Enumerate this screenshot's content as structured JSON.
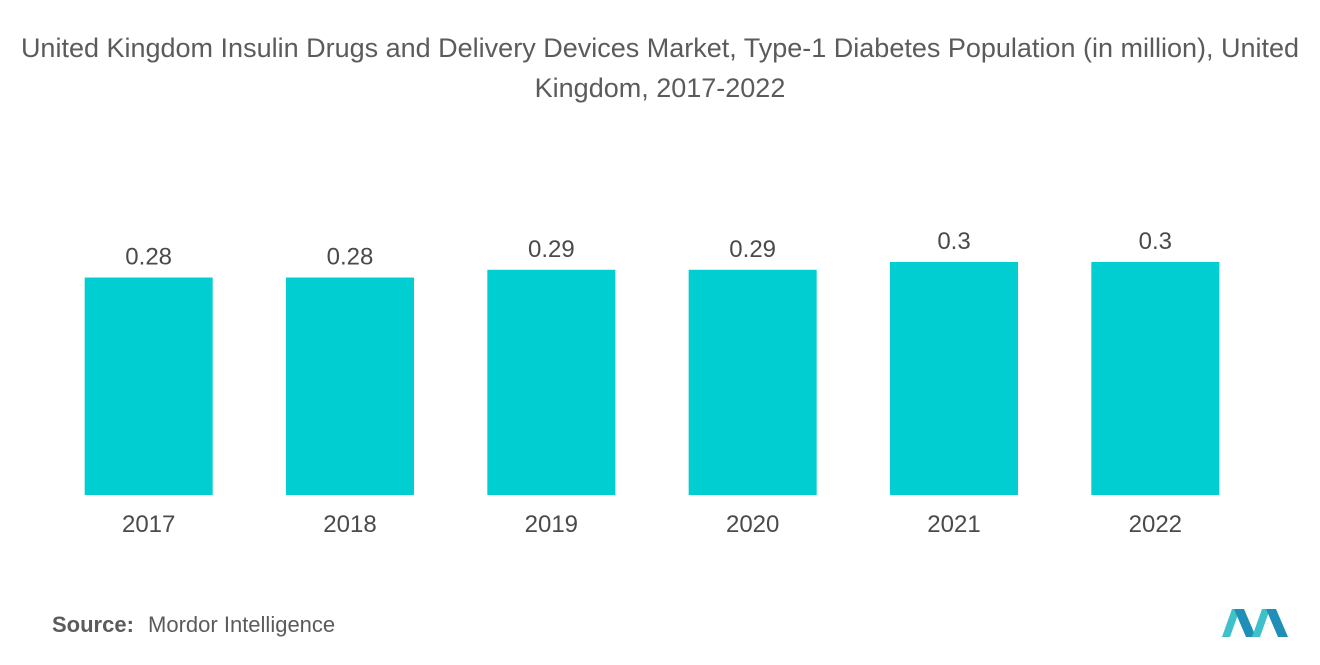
{
  "chart_data": {
    "type": "bar",
    "title": "United Kingdom Insulin Drugs and Delivery Devices Market, Type-1 Diabetes Population (in million), United Kingdom, 2017-2022",
    "categories": [
      "2017",
      "2018",
      "2019",
      "2020",
      "2021",
      "2022"
    ],
    "values": [
      0.28,
      0.28,
      0.29,
      0.29,
      0.3,
      0.3
    ],
    "value_labels": [
      "0.28",
      "0.28",
      "0.29",
      "0.29",
      "0.3",
      "0.3"
    ],
    "xlabel": "",
    "ylabel": "",
    "ylim": [
      0,
      0.3
    ],
    "grid": false,
    "legend": "none",
    "bar_color": "#00CED1"
  },
  "source": {
    "label": "Source:",
    "value": "Mordor Intelligence"
  },
  "brand": {
    "logo_name": "mordor-intelligence-logo-icon",
    "colors": [
      "#1f8fb7",
      "#3fc1c9"
    ]
  }
}
